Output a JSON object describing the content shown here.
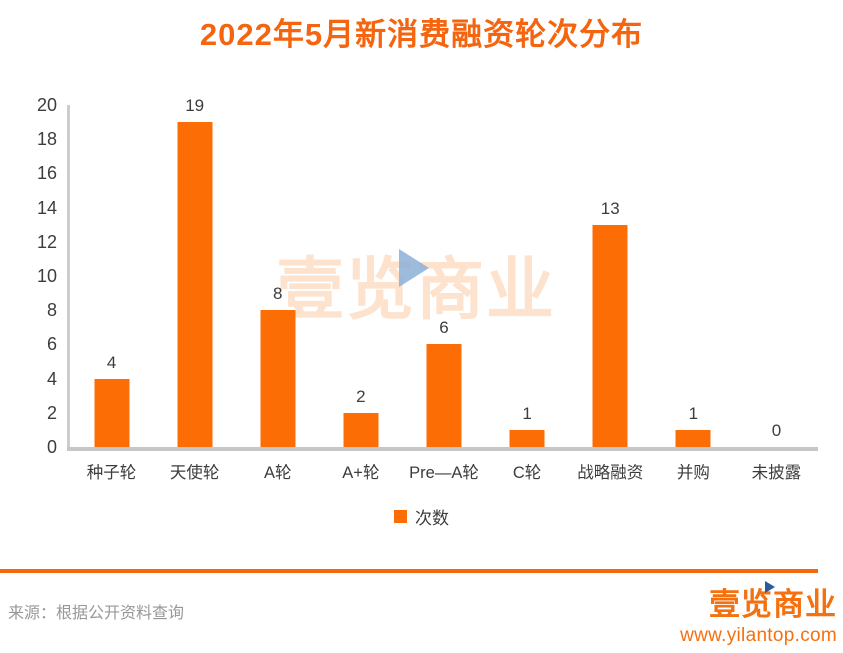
{
  "title": "2022年5月新消费融资轮次分布",
  "chart_data": {
    "type": "bar",
    "title": "2022年5月新消费融资轮次分布",
    "categories": [
      "种子轮",
      "天使轮",
      "A轮",
      "A+轮",
      "Pre—A轮",
      "C轮",
      "战略融资",
      "并购",
      "未披露"
    ],
    "values": [
      4,
      19,
      8,
      2,
      6,
      1,
      13,
      1,
      0
    ],
    "series": [
      {
        "name": "次数",
        "values": [
          4,
          19,
          8,
          2,
          6,
          1,
          13,
          1,
          0
        ]
      }
    ],
    "xlabel": "",
    "ylabel": "",
    "ylim": [
      0,
      20
    ],
    "ytick_step": 2,
    "grid": false,
    "value_labels": true,
    "legend_position": "bottom",
    "bar_color": "#FC6D05"
  },
  "legend": {
    "label": "次数",
    "swatch_color": "#FC6D05"
  },
  "watermark": {
    "text": "壹览商业"
  },
  "footer": {
    "source": "来源：根据公开资料查询",
    "logo_text": "壹览商业",
    "website": "www.yilantop.com"
  },
  "colors": {
    "title": "#F5650F",
    "bar": "#FC6D05",
    "axis_line": "#C9C9C9",
    "label_text": "#3D3D3D",
    "source_text": "#989898",
    "divider": "#F7680B",
    "logo": "#F5700E",
    "watermark_triangle": "#8CAFD7",
    "logo_triangle": "#2D5A9B"
  }
}
